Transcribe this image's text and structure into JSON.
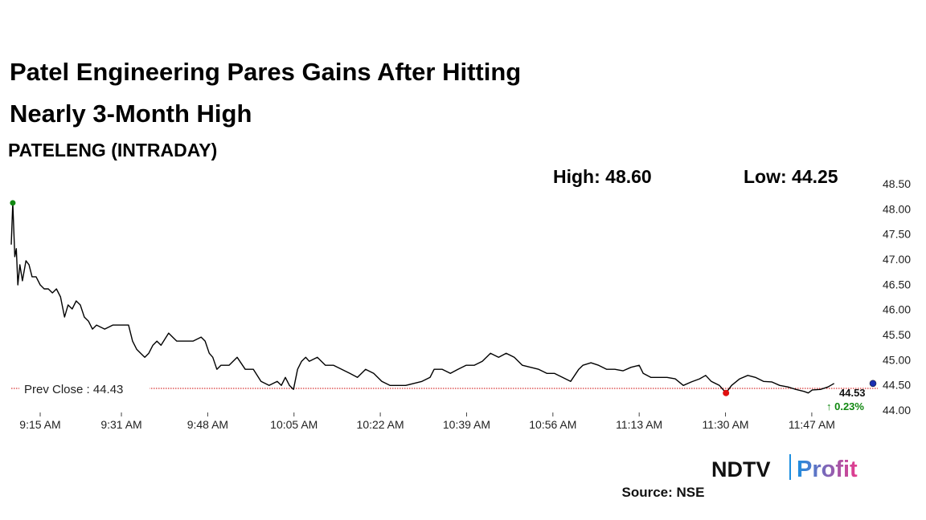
{
  "chart_data": {
    "type": "line",
    "title_lines": [
      "Patel Engineering Pares Gains After Hitting",
      "Nearly 3-Month High"
    ],
    "subtitle": "PATELENG (INTRADAY)",
    "high_label": "High: 48.60",
    "low_label": "Low: 44.25",
    "prev_close": {
      "value": 44.43,
      "label": "Prev Close : 44.43"
    },
    "last_value_label": "44.53",
    "change_label": "↑ 0.23%",
    "source": "Source: NSE",
    "logo": {
      "left": "NDTV",
      "right": "Profit"
    },
    "line_color": "#000000",
    "prev_close_color": "#cc0000",
    "high_color": "#118811",
    "low_color": "#e01010",
    "last_color": "#1a2fb0",
    "change_color": "#118811",
    "x": [
      549.3,
      549.6,
      550.0,
      550.3,
      550.6,
      551.0,
      551.5,
      552.2,
      552.8,
      553.4,
      554.2,
      555.0,
      555.8,
      556.6,
      557.4,
      558.2,
      559.0,
      559.8,
      560.5,
      561.3,
      562.1,
      562.9,
      563.7,
      564.5,
      565.3,
      566.1,
      567.7,
      569.3,
      570.8,
      572.4,
      573.2,
      574.0,
      574.8,
      575.6,
      576.4,
      577.2,
      578.0,
      578.8,
      580.3,
      581.1,
      581.9,
      583.5,
      585.1,
      586.7,
      587.5,
      588.3,
      589.0,
      589.8,
      590.6,
      592.2,
      593.8,
      595.4,
      597.0,
      598.5,
      600.1,
      601.7,
      602.5,
      603.3,
      604.1,
      604.9,
      605.7,
      606.5,
      607.3,
      608.0,
      609.6,
      611.2,
      612.8,
      614.4,
      616.0,
      617.5,
      619.1,
      620.7,
      622.3,
      623.9,
      625.5,
      627.0,
      628.6,
      630.2,
      631.8,
      632.6,
      634.2,
      635.8,
      637.3,
      638.9,
      640.5,
      642.1,
      643.7,
      645.3,
      646.8,
      648.4,
      650.0,
      651.6,
      653.2,
      654.8,
      656.3,
      657.9,
      659.5,
      661.1,
      661.9,
      663.5,
      665.0,
      666.6,
      668.2,
      669.8,
      671.4,
      673.0,
      673.8,
      675.3,
      676.9,
      678.5,
      680.1,
      681.7,
      683.3,
      684.9,
      686.1,
      687.2,
      688.8,
      690.1,
      691.2,
      692.8,
      694.4,
      695.9,
      697.5,
      699.1,
      700.7,
      702.3,
      703.9,
      705.5,
      706.3,
      707.1,
      708.7,
      710.2,
      711.4
    ],
    "values": [
      47.29,
      48.12,
      47.05,
      47.21,
      46.49,
      46.89,
      46.57,
      46.97,
      46.89,
      46.65,
      46.65,
      46.49,
      46.41,
      46.41,
      46.33,
      46.41,
      46.25,
      45.85,
      46.09,
      46.01,
      46.17,
      46.09,
      45.85,
      45.77,
      45.61,
      45.69,
      45.61,
      45.69,
      45.69,
      45.69,
      45.37,
      45.21,
      45.13,
      45.05,
      45.13,
      45.29,
      45.37,
      45.29,
      45.53,
      45.45,
      45.37,
      45.37,
      45.37,
      45.45,
      45.37,
      45.13,
      45.05,
      44.81,
      44.89,
      44.89,
      45.05,
      44.81,
      44.81,
      44.57,
      44.49,
      44.57,
      44.49,
      44.65,
      44.49,
      44.41,
      44.81,
      44.97,
      45.05,
      44.97,
      45.05,
      44.89,
      44.89,
      44.81,
      44.73,
      44.65,
      44.81,
      44.73,
      44.57,
      44.49,
      44.49,
      44.49,
      44.53,
      44.57,
      44.65,
      44.81,
      44.81,
      44.73,
      44.81,
      44.89,
      44.89,
      44.97,
      45.13,
      45.05,
      45.13,
      45.05,
      44.89,
      44.85,
      44.81,
      44.73,
      44.73,
      44.65,
      44.57,
      44.81,
      44.89,
      44.94,
      44.89,
      44.81,
      44.81,
      44.78,
      44.85,
      44.89,
      44.73,
      44.65,
      44.65,
      44.65,
      44.62,
      44.49,
      44.56,
      44.62,
      44.69,
      44.57,
      44.49,
      44.34,
      44.49,
      44.62,
      44.69,
      44.65,
      44.57,
      44.56,
      44.49,
      44.46,
      44.41,
      44.37,
      44.34,
      44.4,
      44.41,
      44.46,
      44.53
    ],
    "xlim": [
      549.3,
      720
    ],
    "xticks": [
      {
        "value": 555,
        "label": "9:15 AM"
      },
      {
        "value": 571,
        "label": "9:31 AM"
      },
      {
        "value": 588,
        "label": "9:48 AM"
      },
      {
        "value": 605,
        "label": "10:05 AM"
      },
      {
        "value": 622,
        "label": "10:22 AM"
      },
      {
        "value": 639,
        "label": "10:39 AM"
      },
      {
        "value": 656,
        "label": "10:56 AM"
      },
      {
        "value": 673,
        "label": "11:13 AM"
      },
      {
        "value": 690,
        "label": "11:30 AM"
      },
      {
        "value": 707,
        "label": "11:47 AM"
      }
    ],
    "ylim": [
      44.0,
      48.5
    ],
    "yticks": [
      {
        "value": 44.0,
        "label": "44.00"
      },
      {
        "value": 44.5,
        "label": "44.50"
      },
      {
        "value": 45.0,
        "label": "45.00"
      },
      {
        "value": 45.5,
        "label": "45.50"
      },
      {
        "value": 46.0,
        "label": "46.00"
      },
      {
        "value": 46.5,
        "label": "46.50"
      },
      {
        "value": 47.0,
        "label": "47.00"
      },
      {
        "value": 47.5,
        "label": "47.50"
      },
      {
        "value": 48.0,
        "label": "48.00"
      },
      {
        "value": 48.5,
        "label": "48.50"
      }
    ]
  }
}
